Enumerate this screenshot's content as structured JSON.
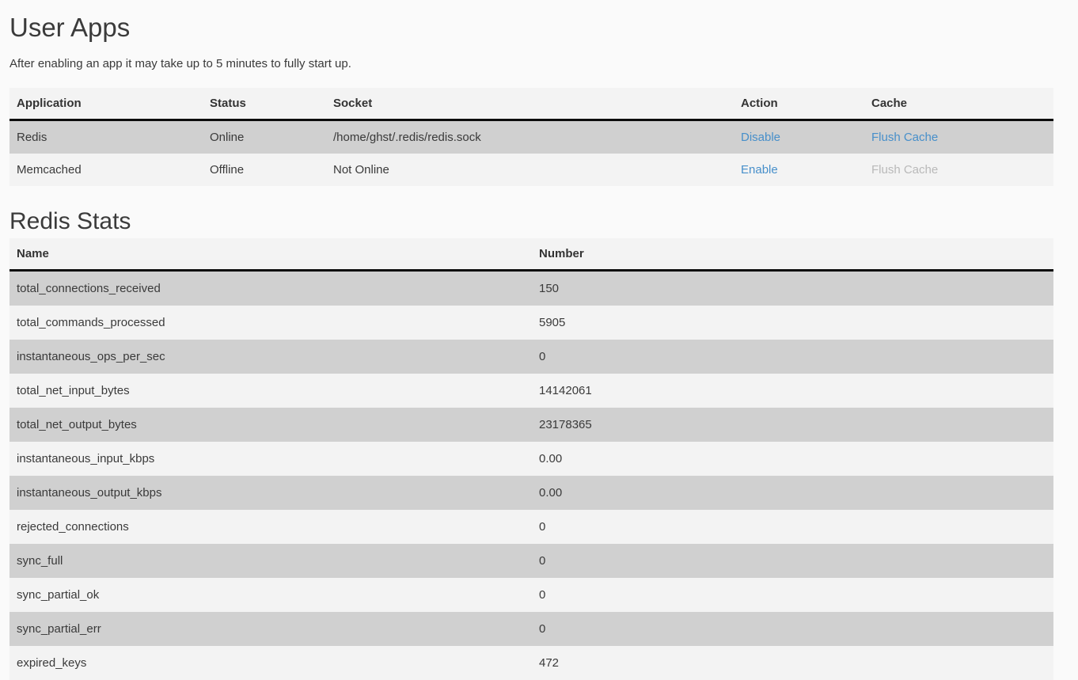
{
  "page": {
    "title": "User Apps",
    "note": "After enabling an app it may take up to 5 minutes to fully start up."
  },
  "apps_table": {
    "columns": {
      "application": "Application",
      "status": "Status",
      "socket": "Socket",
      "action": "Action",
      "cache": "Cache"
    },
    "rows": [
      {
        "application": "Redis",
        "status": "Online",
        "socket": "/home/ghst/.redis/redis.sock",
        "action": "Disable",
        "cache": "Flush Cache",
        "cache_enabled": true
      },
      {
        "application": "Memcached",
        "status": "Offline",
        "socket": "Not Online",
        "action": "Enable",
        "cache": "Flush Cache",
        "cache_enabled": false
      }
    ]
  },
  "stats": {
    "title": "Redis Stats",
    "columns": {
      "name": "Name",
      "number": "Number"
    },
    "rows": [
      [
        "total_connections_received",
        "150"
      ],
      [
        "total_commands_processed",
        "5905"
      ],
      [
        "instantaneous_ops_per_sec",
        "0"
      ],
      [
        "total_net_input_bytes",
        "14142061"
      ],
      [
        "total_net_output_bytes",
        "23178365"
      ],
      [
        "instantaneous_input_kbps",
        "0.00"
      ],
      [
        "instantaneous_output_kbps",
        "0.00"
      ],
      [
        "rejected_connections",
        "0"
      ],
      [
        "sync_full",
        "0"
      ],
      [
        "sync_partial_ok",
        "0"
      ],
      [
        "sync_partial_err",
        "0"
      ],
      [
        "expired_keys",
        "472"
      ]
    ]
  },
  "colors": {
    "link": "#478fca",
    "link_disabled": "#b9b9b9",
    "row_dark": "#d0d0d0",
    "row_light": "#f3f3f3",
    "header_bg": "#f3f3f3",
    "header_border": "#0c0c0c",
    "page_bg": "#fafafa",
    "text": "#3a3a3a"
  }
}
